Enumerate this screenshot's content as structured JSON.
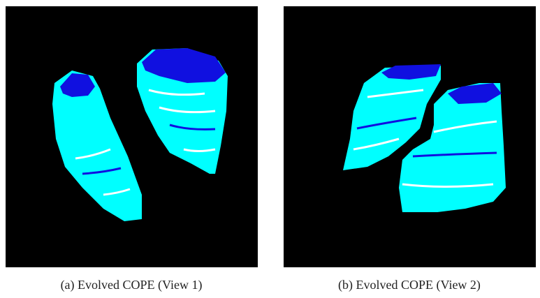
{
  "panels": [
    {
      "caption": "(a) Evolved COPE (View 1)"
    },
    {
      "caption": "(b) Evolved COPE (View 2)"
    }
  ]
}
